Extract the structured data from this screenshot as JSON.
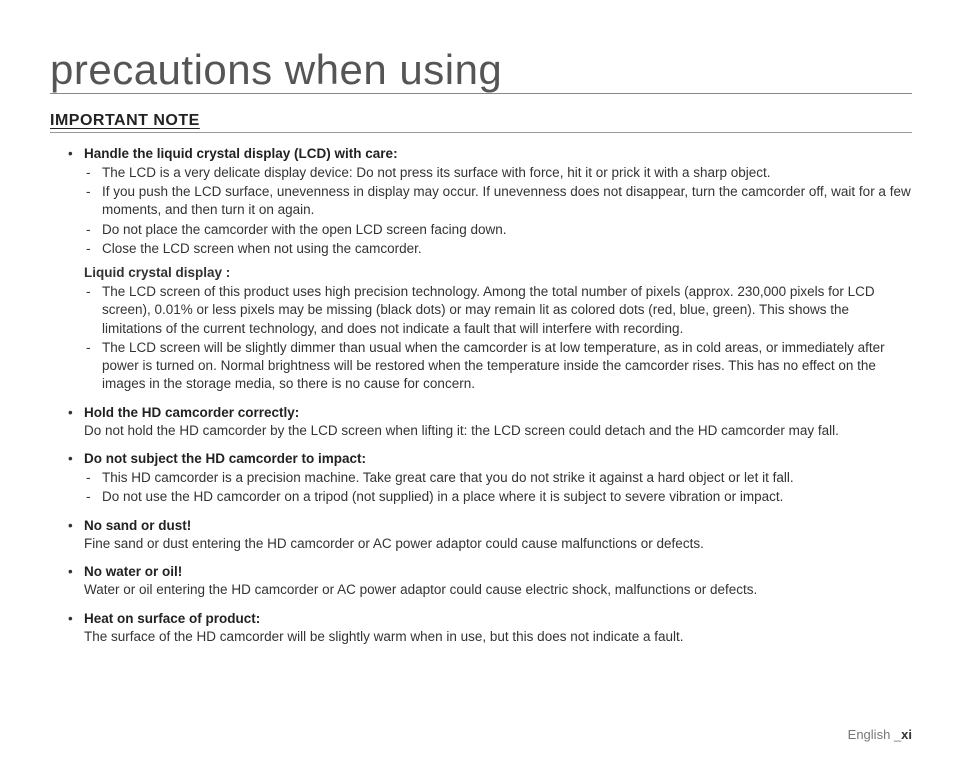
{
  "title": "precautions when using",
  "heading": "IMPORTANT NOTE",
  "footer": {
    "lang": "English",
    "sep": "_",
    "page": "xi"
  },
  "sections": [
    {
      "title": "Handle the liquid crystal display (LCD) with care:",
      "text": "",
      "dashes": [
        "The LCD is a very delicate display device: Do not press its surface with force, hit it or prick it with a sharp object.",
        "If you push the LCD surface, unevenness in display may occur. If unevenness does not disappear, turn the camcorder off, wait for a few moments, and then turn it on again.",
        "Do not place the camcorder with the open LCD screen facing down.",
        "Close the LCD screen when not using the camcorder."
      ],
      "subhead": "Liquid crystal display :",
      "sub_dashes": [
        "The LCD screen of this product uses high precision technology. Among the total number of pixels (approx. 230,000 pixels for LCD screen), 0.01% or less pixels may be missing (black dots) or may remain lit as colored dots (red, blue, green). This shows the limitations of the current technology, and does not indicate a fault that will interfere with recording.",
        "The LCD screen will be slightly dimmer than usual when the camcorder is at low temperature, as in cold areas, or immediately after power is turned on. Normal brightness will be restored when the temperature inside the camcorder rises. This has no effect on the images in the storage media, so there is no cause for concern."
      ]
    },
    {
      "title": "Hold the HD camcorder correctly:",
      "text": "Do not hold the HD camcorder by the LCD screen when lifting it: the LCD screen could detach and the HD camcorder may fall.",
      "dashes": []
    },
    {
      "title": "Do not subject the HD camcorder to impact:",
      "text": "",
      "dashes": [
        "This HD camcorder is a precision machine. Take great care that you do not strike it against a hard object or let it fall.",
        "Do not use the HD camcorder on a tripod (not supplied) in a place where it is subject to severe vibration or impact."
      ]
    },
    {
      "title": "No sand or dust!",
      "text": "Fine sand or dust entering the HD camcorder or AC power adaptor could cause malfunctions or defects.",
      "dashes": []
    },
    {
      "title": "No water or oil!",
      "text": "Water or oil entering the HD camcorder or AC power adaptor could cause electric shock, malfunctions or defects.",
      "dashes": []
    },
    {
      "title": "Heat on surface of product:",
      "text": "The surface of the HD camcorder will be slightly warm when in use, but this does not indicate a fault.",
      "dashes": []
    }
  ]
}
